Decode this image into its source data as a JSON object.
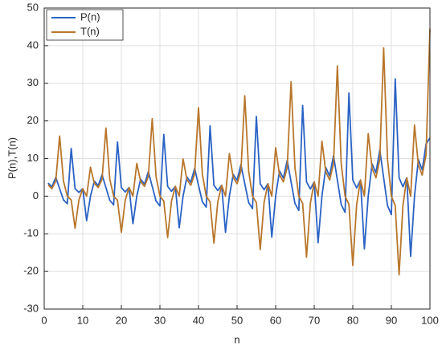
{
  "chart_data": {
    "type": "line",
    "xlabel": "n",
    "ylabel": "P(n),T(n)",
    "x": [
      1,
      2,
      3,
      4,
      5,
      6,
      7,
      8,
      9,
      10,
      11,
      12,
      13,
      14,
      15,
      16,
      17,
      18,
      19,
      20,
      21,
      22,
      23,
      24,
      25,
      26,
      27,
      28,
      29,
      30,
      31,
      32,
      33,
      34,
      35,
      36,
      37,
      38,
      39,
      40,
      41,
      42,
      43,
      44,
      45,
      46,
      47,
      48,
      49,
      50,
      51,
      52,
      53,
      54,
      55,
      56,
      57,
      58,
      59,
      60,
      61,
      62,
      63,
      64,
      65,
      66,
      67,
      68,
      69,
      70,
      71,
      72,
      73,
      74,
      75,
      76,
      77,
      78,
      79,
      80,
      81,
      82,
      83,
      84,
      85,
      86,
      87,
      88,
      89,
      90,
      91,
      92,
      93,
      94,
      95,
      96,
      97,
      98,
      99,
      100
    ],
    "series": [
      {
        "name": "P(n)",
        "color": "#2a62c4",
        "values": [
          3.5,
          2.5,
          5,
          2,
          -1,
          -2,
          12.7,
          2,
          1,
          2,
          -6.5,
          0,
          4,
          2.8,
          5.7,
          2.3,
          -1.1,
          -2.3,
          14.4,
          2.3,
          1.1,
          2.3,
          -7.3,
          0,
          4.5,
          3.2,
          6.5,
          2.6,
          -1.3,
          -2.6,
          16.4,
          2.6,
          1.3,
          2.6,
          -8.4,
          0,
          5.1,
          3.7,
          7.4,
          2.9,
          -1.5,
          -2.9,
          18.7,
          2.9,
          1.5,
          2.9,
          -9.6,
          0,
          5.8,
          4.2,
          8.4,
          3.3,
          -1.7,
          -3.3,
          21.2,
          3.3,
          1.7,
          3.3,
          -10.9,
          0,
          6.7,
          4.8,
          9.5,
          3.8,
          -1.9,
          -3.8,
          24.1,
          3.8,
          1.9,
          3.8,
          -12.4,
          0,
          7.6,
          5.4,
          10.8,
          4.3,
          -2.2,
          -4.3,
          27.4,
          4.3,
          2.2,
          4.3,
          -14,
          0,
          8.6,
          6.2,
          12.3,
          4.9,
          -2.5,
          -4.9,
          31.2,
          4.9,
          2.5,
          4.9,
          -16,
          0,
          9.7,
          7,
          13.9,
          15.5
        ]
      },
      {
        "name": "T(n)",
        "color": "#b8762b",
        "values": [
          3,
          2,
          4,
          16,
          4,
          0,
          -1,
          -8.5,
          -1,
          2,
          0,
          7.7,
          3.4,
          2.3,
          4.5,
          18.1,
          4.5,
          0,
          -1.1,
          -9.6,
          -1.1,
          2.3,
          0,
          8.7,
          3.9,
          2.6,
          5.2,
          20.6,
          5.2,
          0,
          -1.3,
          -11,
          -1.3,
          2.6,
          0,
          9.9,
          4.4,
          2.9,
          5.9,
          23.5,
          5.9,
          0,
          -1.5,
          -12.5,
          -1.5,
          2.9,
          0,
          11.3,
          5,
          3.3,
          6.7,
          26.7,
          6.7,
          0,
          -1.7,
          -14.2,
          -1.7,
          3.3,
          0,
          12.9,
          5.7,
          3.8,
          7.6,
          30.4,
          7.6,
          0,
          -1.9,
          -16.2,
          -1.9,
          3.8,
          0,
          14.6,
          6.5,
          4.3,
          8.6,
          34.6,
          8.6,
          0,
          -2.2,
          -18.4,
          -2.2,
          4.3,
          0,
          16.6,
          7.4,
          4.9,
          9.8,
          39.4,
          9.8,
          0,
          -2.5,
          -20.9,
          -2.5,
          4.9,
          0,
          18.9,
          8.3,
          5.6,
          11.1,
          44.5
        ]
      }
    ],
    "xlim": [
      0,
      100
    ],
    "xticks": [
      0,
      10,
      20,
      30,
      40,
      50,
      60,
      70,
      80,
      90,
      100
    ],
    "ylim": [
      -30,
      50
    ],
    "yticks": [
      -30,
      -20,
      -10,
      0,
      10,
      20,
      30,
      40,
      50
    ],
    "grid": true,
    "legend": "top-left"
  }
}
